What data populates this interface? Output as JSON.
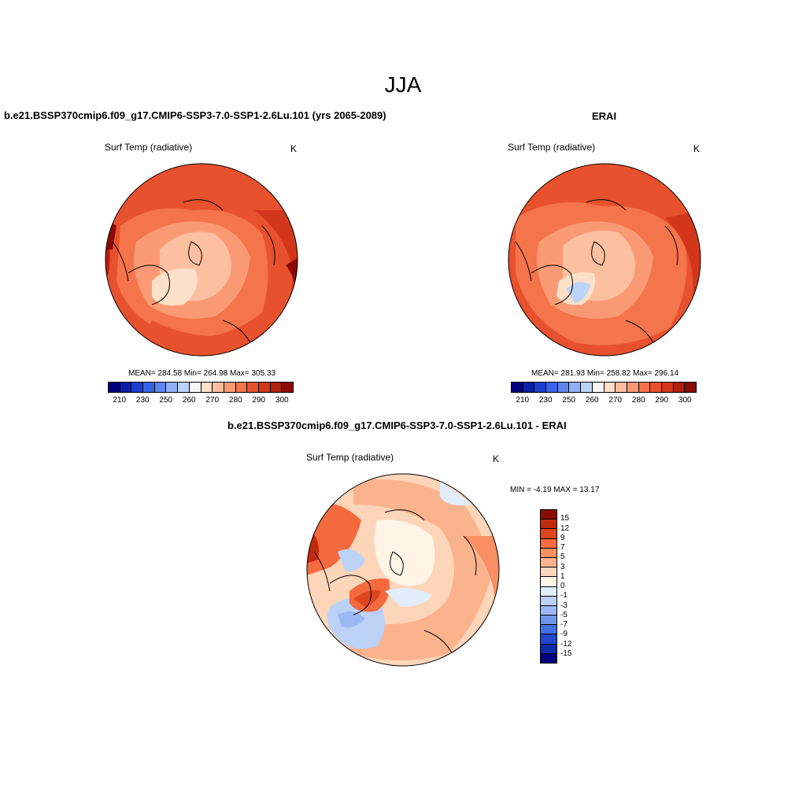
{
  "title": "JJA",
  "panels": {
    "model": {
      "title": "b.e21.BSSP370cmip6.f09_g17.CMIP6-SSP3-7.0-SSP1-2.6Lu.101 (yrs 2065-2089)",
      "variable": "Surf Temp (radiative)",
      "units": "K",
      "stats": "MEAN= 284.58  Min= 264.98  Max= 305.33"
    },
    "obs": {
      "title": "ERAI",
      "variable": "Surf Temp (radiative)",
      "units": "K",
      "stats": "MEAN= 281.93  Min= 258.82  Max= 296.14"
    },
    "diff": {
      "title": "b.e21.BSSP370cmip6.f09_g17.CMIP6-SSP3-7.0-SSP1-2.6Lu.101 - ERAI",
      "variable": "Surf Temp (radiative)",
      "units": "K",
      "stats": "MIN =  -4.19 MAX =  13.17"
    }
  },
  "colorbar_abs": {
    "colors": [
      "#00007f",
      "#0a1fa8",
      "#1a3fd0",
      "#3763e8",
      "#5f86ee",
      "#8fb0f5",
      "#bcd3fa",
      "#f5f5f5",
      "#fde0c8",
      "#fcbfa0",
      "#fa9a75",
      "#f4744c",
      "#e8512e",
      "#d3361a",
      "#b21f0d",
      "#8b0a04"
    ],
    "labels": [
      "210",
      "230",
      "250",
      "260",
      "270",
      "280",
      "290",
      "300"
    ]
  },
  "colorbar_diff": {
    "colors": [
      "#8b0a04",
      "#c22a0e",
      "#e0461e",
      "#f46a3e",
      "#fa8f63",
      "#fbb38e",
      "#fdd5b8",
      "#fff4e6",
      "#e1edfb",
      "#bcd1f6",
      "#9bb8f2",
      "#6e96ec",
      "#4370e4",
      "#2247cc",
      "#0c2ba8",
      "#00007f"
    ],
    "labels": [
      "15",
      "12",
      "9",
      "7",
      "5",
      "3",
      "1",
      "0",
      "-1",
      "-3",
      "-5",
      "-7",
      "-9",
      "-12",
      "-15"
    ]
  }
}
